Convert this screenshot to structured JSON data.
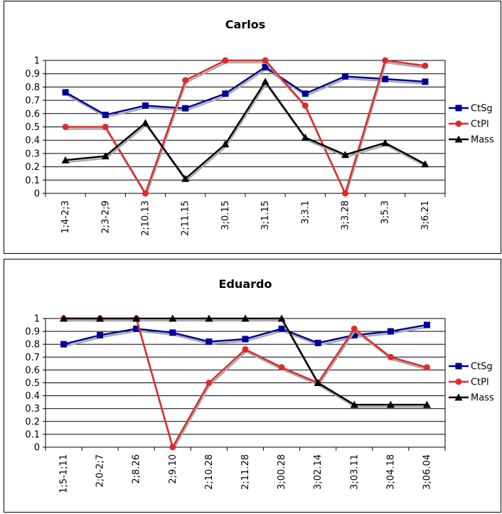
{
  "chart_data": [
    {
      "type": "line",
      "title": "Carlos",
      "categories": [
        "1;4-2;3",
        "2;3-2;9",
        "2;10.13",
        "2;11.15",
        "3;0.15",
        "3;1.15",
        "3;3.1",
        "3;3.28",
        "3;5.3",
        "3;6.21"
      ],
      "ylim": [
        0,
        1
      ],
      "yticks": [
        "0",
        "0.1",
        "0.2",
        "0.3",
        "0.4",
        "0.5",
        "0.6",
        "0.7",
        "0.8",
        "0.9",
        "1"
      ],
      "grid": true,
      "legend_position": "right",
      "series": [
        {
          "name": "CtSg",
          "color": "#000099",
          "marker": "square",
          "values": [
            0.76,
            0.59,
            0.66,
            0.64,
            0.75,
            0.95,
            0.75,
            0.88,
            0.86,
            0.84
          ]
        },
        {
          "name": "CtPl",
          "color": "#dd2a2a",
          "marker": "circle",
          "values": [
            0.5,
            0.5,
            0.0,
            0.85,
            1.0,
            1.0,
            0.66,
            0.0,
            1.0,
            0.96
          ]
        },
        {
          "name": "Mass",
          "color": "#000000",
          "marker": "triangle",
          "values": [
            0.25,
            0.28,
            0.53,
            0.11,
            0.37,
            0.84,
            0.42,
            0.29,
            0.38,
            0.22
          ]
        }
      ]
    },
    {
      "type": "line",
      "title": "Eduardo",
      "categories": [
        "1;5-1;11",
        "2;0-2;7",
        "2;8.26",
        "2;9.10",
        "2;10.28",
        "2;11.28",
        "3;00.28",
        "3;02.14",
        "3;03.11",
        "3;04.18",
        "3;06.04"
      ],
      "ylim": [
        0,
        1
      ],
      "yticks": [
        "0",
        "0.1",
        "0.2",
        "0.3",
        "0.4",
        "0.5",
        "0.6",
        "0.7",
        "0.8",
        "0.9",
        "1"
      ],
      "grid": true,
      "legend_position": "right",
      "series": [
        {
          "name": "CtSg",
          "color": "#000099",
          "marker": "square",
          "values": [
            0.8,
            0.87,
            0.92,
            0.89,
            0.82,
            0.84,
            0.92,
            0.81,
            0.87,
            0.9,
            0.95
          ]
        },
        {
          "name": "CtPl",
          "color": "#dd2a2a",
          "marker": "circle",
          "values": [
            1.0,
            1.0,
            1.0,
            0.0,
            0.5,
            0.76,
            0.62,
            0.5,
            0.92,
            0.7,
            0.62
          ]
        },
        {
          "name": "Mass",
          "color": "#000000",
          "marker": "triangle",
          "values": [
            1.0,
            1.0,
            1.0,
            1.0,
            1.0,
            1.0,
            1.0,
            0.5,
            0.33,
            0.33,
            0.33
          ]
        }
      ]
    }
  ]
}
